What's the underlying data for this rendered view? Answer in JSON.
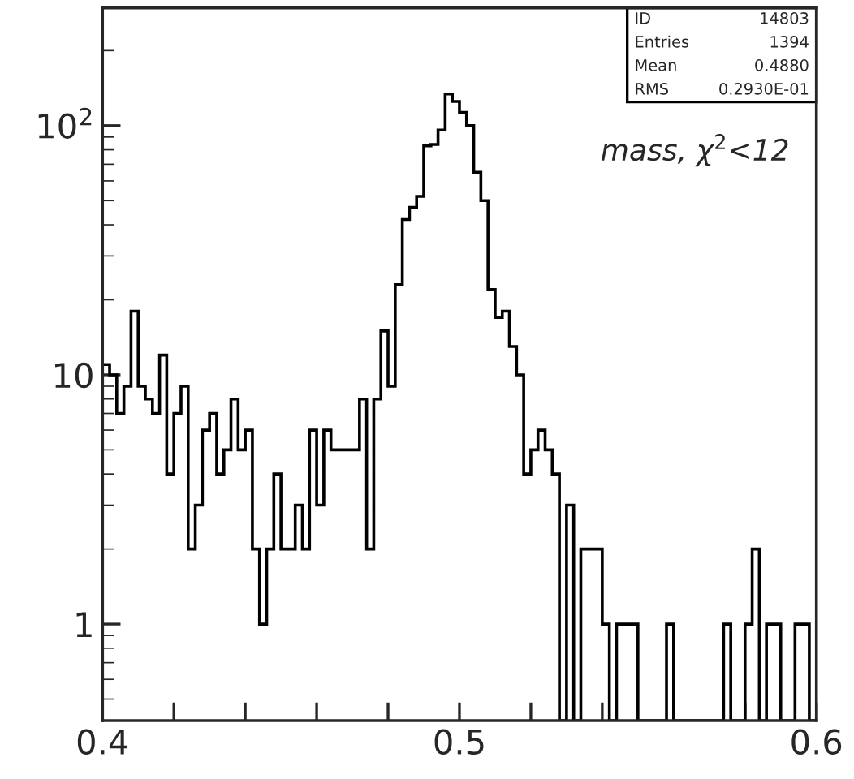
{
  "chart_data": {
    "type": "histogram",
    "bins": [
      0.4,
      0.402,
      0.404,
      0.406,
      0.408,
      0.41,
      0.412,
      0.414,
      0.416,
      0.418,
      0.42,
      0.422,
      0.424,
      0.426,
      0.428,
      0.43,
      0.432,
      0.434,
      0.436,
      0.438,
      0.44,
      0.442,
      0.444,
      0.446,
      0.448,
      0.45,
      0.452,
      0.454,
      0.456,
      0.458,
      0.46,
      0.462,
      0.464,
      0.466,
      0.468,
      0.47,
      0.472,
      0.474,
      0.476,
      0.478,
      0.48,
      0.482,
      0.484,
      0.486,
      0.488,
      0.49,
      0.492,
      0.494,
      0.496,
      0.498,
      0.5,
      0.502,
      0.504,
      0.506,
      0.508,
      0.51,
      0.512,
      0.514,
      0.516,
      0.518,
      0.52,
      0.522,
      0.524,
      0.526,
      0.528,
      0.53,
      0.532,
      0.534,
      0.536,
      0.538,
      0.54,
      0.542,
      0.544,
      0.546,
      0.548,
      0.55,
      0.552,
      0.554,
      0.556,
      0.558,
      0.56,
      0.562,
      0.564,
      0.566,
      0.568,
      0.57,
      0.572,
      0.574,
      0.576,
      0.578,
      0.58,
      0.582,
      0.584,
      0.586,
      0.588,
      0.59,
      0.592,
      0.594,
      0.596,
      0.598,
      0.6
    ],
    "values": [
      11,
      10,
      7,
      9,
      18,
      9,
      8,
      7,
      12,
      4,
      7,
      9,
      2,
      3,
      6,
      7,
      4,
      5,
      8,
      5,
      6,
      2,
      1,
      2,
      4,
      2,
      2,
      3,
      2,
      6,
      3,
      6,
      5,
      5,
      5,
      5,
      8,
      2,
      8,
      15,
      9,
      23,
      42,
      47,
      52,
      83,
      84,
      96,
      134,
      125,
      113,
      100,
      65,
      50,
      22,
      17,
      18,
      13,
      10,
      4,
      5,
      6,
      5,
      4,
      null,
      3,
      null,
      2,
      2,
      2,
      1,
      null,
      1,
      1,
      1,
      null,
      null,
      null,
      null,
      1,
      null,
      null,
      null,
      null,
      null,
      null,
      null,
      1,
      null,
      null,
      1,
      2,
      null,
      1,
      1,
      null,
      null,
      1,
      1,
      null
    ],
    "color": "#000000",
    "log": "y",
    "xlim": [
      0.4,
      0.6
    ],
    "xticks": [
      0.4,
      {
        "value": 0.42,
        "label": null
      },
      {
        "value": 0.44,
        "label": null
      },
      {
        "value": 0.46,
        "label": null
      },
      {
        "value": 0.48,
        "label": null
      },
      0.5,
      {
        "value": 0.52,
        "label": null
      },
      {
        "value": 0.54,
        "label": null
      },
      {
        "value": 0.56,
        "label": null
      },
      {
        "value": 0.58,
        "label": null
      },
      0.6
    ],
    "ylim": [
      0.41,
      297
    ],
    "yticks": [
      1,
      10,
      {
        "value": 100,
        "label": "10$^{2}$"
      }
    ],
    "grid": false,
    "annotations": [
      "ID 14803",
      "Entries 1394",
      "Mean 0.4880",
      "RMS 0.2930E-01",
      {
        "text": "mass, χ$^{2}$<12"
      }
    ]
  }
}
